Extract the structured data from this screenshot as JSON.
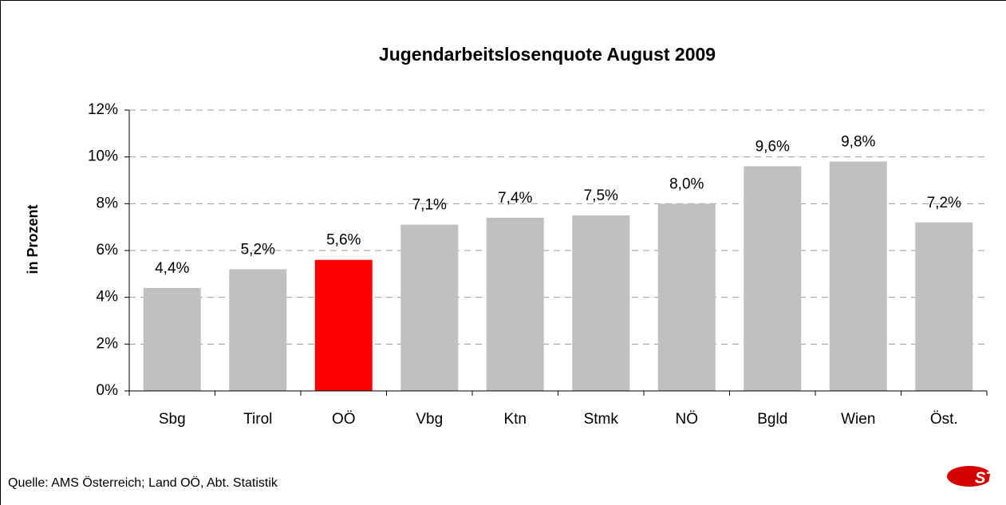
{
  "chart_data": {
    "type": "bar",
    "title": "Jugendarbeitslosenquote August 2009",
    "y_label": "in Prozent",
    "source": "Quelle: AMS Österreich; Land OÖ, Abt. Statistik",
    "logo": "STAT",
    "categories": [
      "Sbg",
      "Tirol",
      "OÖ",
      "Vbg",
      "Ktn",
      "Stmk",
      "NÖ",
      "Bgld",
      "Wien",
      "Öst."
    ],
    "values": [
      4.4,
      5.2,
      5.6,
      7.1,
      7.4,
      7.5,
      8.0,
      9.6,
      9.8,
      7.2
    ],
    "value_labels": [
      "4,4%",
      "5,2%",
      "5,6%",
      "7,1%",
      "7,4%",
      "7,5%",
      "8,0%",
      "9,6%",
      "9,8%",
      "7,2%"
    ],
    "colors": [
      "#c0c0c0",
      "#c0c0c0",
      "#ff0000",
      "#c0c0c0",
      "#c0c0c0",
      "#c0c0c0",
      "#c0c0c0",
      "#c0c0c0",
      "#c0c0c0",
      "#c0c0c0"
    ],
    "ylim": [
      0,
      12
    ],
    "yticks": [
      {
        "value": 0,
        "label": "0%"
      },
      {
        "value": 2,
        "label": "2%"
      },
      {
        "value": 4,
        "label": "4%"
      },
      {
        "value": 6,
        "label": "6%"
      },
      {
        "value": 8,
        "label": "8%"
      },
      {
        "value": 10,
        "label": "10%"
      },
      {
        "value": 12,
        "label": "12%"
      }
    ],
    "grid": true
  }
}
